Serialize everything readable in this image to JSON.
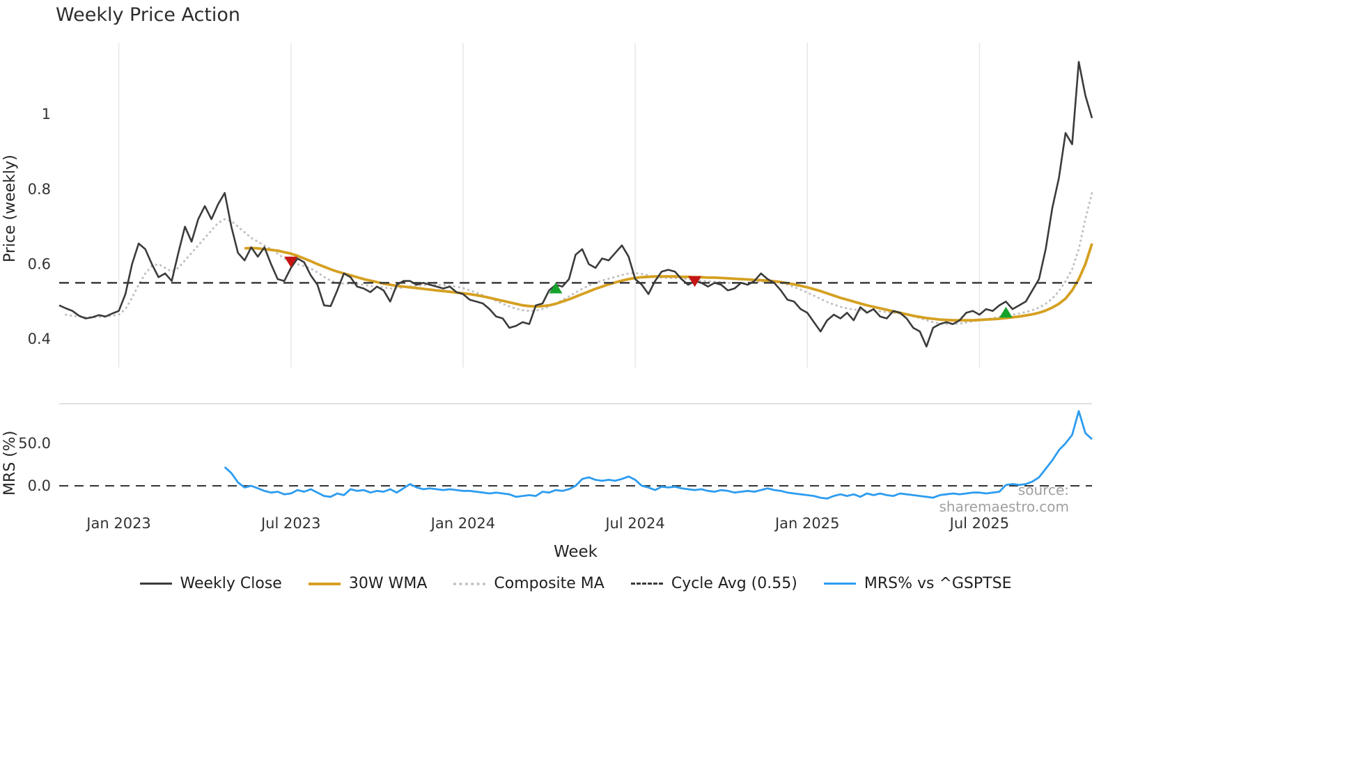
{
  "title": "Weekly Price Action",
  "watermark": "source: sharemaestro.com",
  "legend": {
    "items": [
      {
        "label": "Weekly Close",
        "color": "#3b3b3b",
        "style": "solid"
      },
      {
        "label": "30W WMA",
        "color": "#d5a021",
        "style": "solid"
      },
      {
        "label": "Composite MA",
        "color": "#c0c0c0",
        "style": "dotted"
      },
      {
        "label": "Cycle Avg (0.55)",
        "color": "#3a3a3a",
        "style": "dashed"
      },
      {
        "label": "MRS% vs ^GSPTSE",
        "color": "#2d9cf0",
        "style": "solid"
      }
    ]
  },
  "chart_data": {
    "type": "line",
    "title": "Weekly Price Action",
    "xlabel": "Week",
    "grid": "vertical-top-panel",
    "legend_position": "bottom-center",
    "x_ticks": [
      {
        "week": 9,
        "label": "Jan 2023"
      },
      {
        "week": 35,
        "label": "Jul 2023"
      },
      {
        "week": 61,
        "label": "Jan 2024"
      },
      {
        "week": 87,
        "label": "Jul 2024"
      },
      {
        "week": 113,
        "label": "Jan 2025"
      },
      {
        "week": 139,
        "label": "Jul 2025"
      }
    ],
    "panels": [
      {
        "name": "price",
        "ylabel": "Price (weekly)",
        "ylim": [
          0.324,
          1.19
        ],
        "yticks": [
          {
            "value": 1.0,
            "label": "1"
          },
          {
            "value": 0.8,
            "label": "0.8"
          },
          {
            "value": 0.6,
            "label": "0.6"
          },
          {
            "value": 0.4,
            "label": "0.4"
          }
        ]
      },
      {
        "name": "mrs",
        "ylabel": "MRS (%)",
        "ylim": [
          -24.6,
          96.7
        ],
        "yticks": [
          {
            "value": 50.0,
            "label": "50.0"
          },
          {
            "value": 0.0,
            "label": "0.0"
          }
        ],
        "zero_line": 0.0
      }
    ],
    "cycle_avg": 0.55,
    "series": [
      {
        "name": "Composite MA",
        "panel": 0,
        "color": "#c0c0c0",
        "style": "dotted",
        "width": 3,
        "start_week": 1,
        "values": [
          0.465,
          0.462,
          0.46,
          0.458,
          0.458,
          0.459,
          0.46,
          0.462,
          0.465,
          0.48,
          0.51,
          0.545,
          0.575,
          0.595,
          0.6,
          0.59,
          0.58,
          0.59,
          0.61,
          0.63,
          0.65,
          0.67,
          0.69,
          0.71,
          0.72,
          0.715,
          0.7,
          0.685,
          0.67,
          0.66,
          0.65,
          0.64,
          0.628,
          0.615,
          0.605,
          0.6,
          0.595,
          0.588,
          0.578,
          0.566,
          0.556,
          0.55,
          0.548,
          0.548,
          0.547,
          0.545,
          0.542,
          0.54,
          0.538,
          0.535,
          0.535,
          0.538,
          0.541,
          0.543,
          0.544,
          0.545,
          0.545,
          0.544,
          0.542,
          0.54,
          0.536,
          0.53,
          0.524,
          0.517,
          0.51,
          0.502,
          0.494,
          0.487,
          0.481,
          0.477,
          0.475,
          0.476,
          0.48,
          0.487,
          0.495,
          0.504,
          0.514,
          0.524,
          0.534,
          0.543,
          0.55,
          0.556,
          0.561,
          0.566,
          0.571,
          0.575,
          0.576,
          0.574,
          0.57,
          0.566,
          0.564,
          0.563,
          0.563,
          0.562,
          0.56,
          0.558,
          0.556,
          0.554,
          0.553,
          0.552,
          0.55,
          0.549,
          0.549,
          0.55,
          0.551,
          0.553,
          0.554,
          0.553,
          0.55,
          0.545,
          0.539,
          0.532,
          0.524,
          0.516,
          0.507,
          0.499,
          0.492,
          0.486,
          0.482,
          0.479,
          0.477,
          0.476,
          0.475,
          0.474,
          0.472,
          0.47,
          0.468,
          0.465,
          0.461,
          0.456,
          0.45,
          0.445,
          0.442,
          0.44,
          0.44,
          0.441,
          0.444,
          0.447,
          0.45,
          0.453,
          0.456,
          0.459,
          0.462,
          0.465,
          0.468,
          0.472,
          0.477,
          0.484,
          0.494,
          0.508,
          0.528,
          0.554,
          0.586,
          0.64,
          0.72,
          0.79
        ]
      },
      {
        "name": "30W WMA",
        "panel": 0,
        "color": "#d5a021",
        "style": "solid",
        "width": 3.8,
        "start_week": 28,
        "values": [
          0.642,
          0.643,
          0.642,
          0.64,
          0.638,
          0.636,
          0.632,
          0.628,
          0.622,
          0.615,
          0.608,
          0.6,
          0.593,
          0.586,
          0.58,
          0.575,
          0.57,
          0.565,
          0.56,
          0.556,
          0.552,
          0.548,
          0.545,
          0.542,
          0.54,
          0.538,
          0.536,
          0.534,
          0.532,
          0.53,
          0.528,
          0.526,
          0.524,
          0.522,
          0.52,
          0.517,
          0.514,
          0.51,
          0.506,
          0.502,
          0.498,
          0.494,
          0.49,
          0.488,
          0.487,
          0.488,
          0.49,
          0.494,
          0.5,
          0.506,
          0.513,
          0.52,
          0.527,
          0.534,
          0.54,
          0.546,
          0.551,
          0.556,
          0.56,
          0.563,
          0.565,
          0.566,
          0.567,
          0.567,
          0.567,
          0.567,
          0.566,
          0.566,
          0.565,
          0.565,
          0.564,
          0.564,
          0.563,
          0.562,
          0.561,
          0.56,
          0.559,
          0.558,
          0.557,
          0.556,
          0.554,
          0.552,
          0.549,
          0.546,
          0.542,
          0.538,
          0.533,
          0.528,
          0.522,
          0.516,
          0.51,
          0.505,
          0.5,
          0.495,
          0.49,
          0.486,
          0.482,
          0.478,
          0.474,
          0.47,
          0.466,
          0.462,
          0.459,
          0.456,
          0.454,
          0.452,
          0.451,
          0.45,
          0.45,
          0.45,
          0.45,
          0.451,
          0.452,
          0.453,
          0.454,
          0.456,
          0.458,
          0.46,
          0.463,
          0.466,
          0.47,
          0.476,
          0.484,
          0.494,
          0.508,
          0.53,
          0.56,
          0.6,
          0.655
        ]
      },
      {
        "name": "Weekly Close",
        "panel": 0,
        "color": "#3b3b3b",
        "style": "solid",
        "width": 2.6,
        "start_week": 0,
        "values": [
          0.49,
          0.482,
          0.475,
          0.462,
          0.455,
          0.458,
          0.464,
          0.46,
          0.468,
          0.475,
          0.52,
          0.6,
          0.655,
          0.64,
          0.6,
          0.565,
          0.575,
          0.555,
          0.63,
          0.7,
          0.66,
          0.72,
          0.755,
          0.72,
          0.76,
          0.79,
          0.7,
          0.63,
          0.61,
          0.645,
          0.62,
          0.645,
          0.6,
          0.56,
          0.555,
          0.59,
          0.615,
          0.605,
          0.57,
          0.545,
          0.49,
          0.488,
          0.53,
          0.575,
          0.565,
          0.54,
          0.535,
          0.525,
          0.54,
          0.53,
          0.5,
          0.545,
          0.555,
          0.555,
          0.545,
          0.55,
          0.545,
          0.54,
          0.535,
          0.54,
          0.525,
          0.52,
          0.505,
          0.5,
          0.495,
          0.48,
          0.46,
          0.455,
          0.43,
          0.435,
          0.445,
          0.44,
          0.49,
          0.495,
          0.53,
          0.545,
          0.54,
          0.56,
          0.625,
          0.64,
          0.6,
          0.59,
          0.615,
          0.61,
          0.63,
          0.65,
          0.62,
          0.56,
          0.545,
          0.52,
          0.555,
          0.58,
          0.585,
          0.58,
          0.56,
          0.545,
          0.555,
          0.55,
          0.54,
          0.55,
          0.545,
          0.53,
          0.535,
          0.55,
          0.545,
          0.555,
          0.575,
          0.56,
          0.55,
          0.53,
          0.505,
          0.5,
          0.48,
          0.47,
          0.445,
          0.42,
          0.45,
          0.465,
          0.455,
          0.47,
          0.45,
          0.485,
          0.47,
          0.48,
          0.46,
          0.455,
          0.475,
          0.47,
          0.455,
          0.43,
          0.42,
          0.38,
          0.43,
          0.44,
          0.445,
          0.44,
          0.45,
          0.47,
          0.475,
          0.465,
          0.48,
          0.475,
          0.49,
          0.5,
          0.48,
          0.49,
          0.5,
          0.53,
          0.56,
          0.64,
          0.75,
          0.83,
          0.95,
          0.92,
          1.14,
          1.05,
          0.99
        ]
      },
      {
        "name": "Cycle Avg (0.55)",
        "panel": 0,
        "color": "#3a3a3a",
        "style": "dashed",
        "width": 2.5,
        "constant": 0.55
      },
      {
        "name": "MRS% vs ^GSPTSE",
        "panel": 1,
        "color": "#2d9cf0",
        "style": "solid",
        "width": 2.8,
        "start_week": 25,
        "values": [
          22,
          15,
          4,
          -2,
          0,
          -3,
          -6,
          -8,
          -7,
          -10,
          -9,
          -5,
          -7,
          -4,
          -8,
          -12,
          -13,
          -9,
          -11,
          -4,
          -6,
          -5,
          -8,
          -6,
          -7,
          -4,
          -8,
          -3,
          2,
          -2,
          -4,
          -3,
          -4,
          -5,
          -4,
          -5,
          -6,
          -6,
          -7,
          -8,
          -9,
          -8,
          -9,
          -10,
          -13,
          -12,
          -11,
          -12,
          -7,
          -8,
          -5,
          -6,
          -4,
          0,
          8,
          10,
          7,
          6,
          7,
          6,
          8,
          11,
          7,
          0,
          -2,
          -5,
          -1,
          -2,
          -1,
          -3,
          -4,
          -5,
          -4,
          -6,
          -7,
          -5,
          -6,
          -8,
          -7,
          -6,
          -7,
          -5,
          -3,
          -5,
          -6,
          -8,
          -9,
          -10,
          -11,
          -12,
          -14,
          -15,
          -12,
          -10,
          -12,
          -10,
          -13,
          -9,
          -11,
          -9,
          -11,
          -12,
          -9,
          -10,
          -11,
          -12,
          -13,
          -14,
          -11,
          -10,
          -9,
          -10,
          -9,
          -8,
          -8,
          -9,
          -8,
          -7,
          1,
          2,
          1,
          2,
          5,
          10,
          20,
          30,
          42,
          50,
          60,
          88,
          62,
          55
        ]
      }
    ],
    "markers": {
      "sell": [
        {
          "week": 35,
          "value": 0.607
        },
        {
          "week": 96,
          "value": 0.555
        }
      ],
      "buy": [
        {
          "week": 75,
          "value": 0.535
        },
        {
          "week": 143,
          "value": 0.47
        }
      ]
    }
  }
}
